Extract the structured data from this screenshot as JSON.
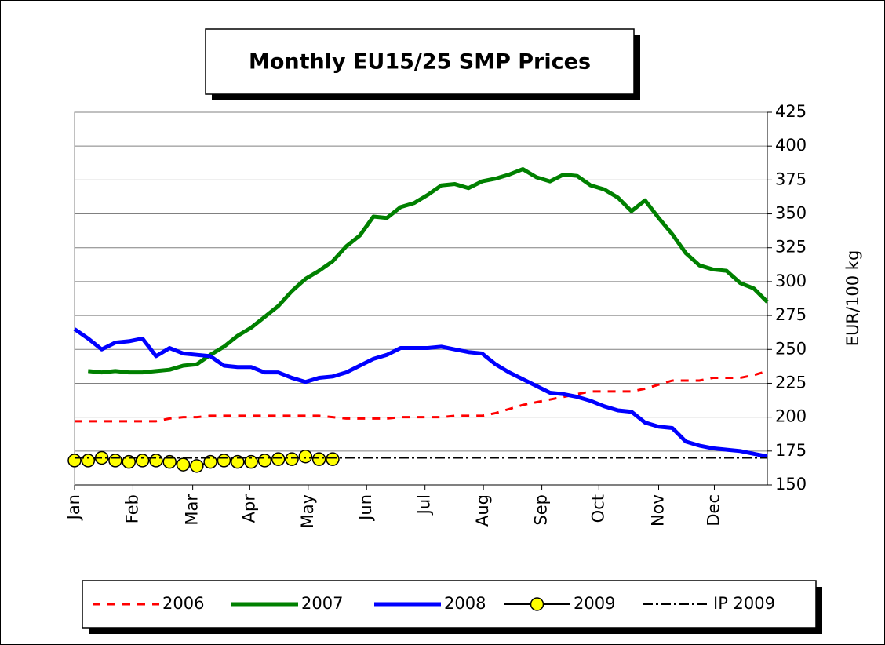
{
  "chart_data": {
    "type": "line",
    "title": "Monthly EU15/25 SMP Prices",
    "y_label": "EUR/100 kg",
    "x": [
      0,
      1,
      2,
      3,
      4,
      5,
      6,
      7,
      8,
      9,
      10,
      11,
      12,
      13,
      14,
      15,
      16,
      17,
      18,
      19,
      20,
      21,
      22,
      23,
      24,
      25,
      26,
      27,
      28,
      29,
      30,
      31,
      32,
      33,
      34,
      35,
      36,
      37,
      38,
      39,
      40,
      41,
      42,
      43,
      44,
      45,
      46,
      47,
      48,
      49,
      50,
      51
    ],
    "xlim": [
      0,
      51
    ],
    "xticks": [
      {
        "value": 0,
        "label": "Jan"
      },
      {
        "value": 4.3,
        "label": "Feb"
      },
      {
        "value": 8.7,
        "label": "Mar"
      },
      {
        "value": 12.9,
        "label": "Apr"
      },
      {
        "value": 17.2,
        "label": "May"
      },
      {
        "value": 21.5,
        "label": "Jun"
      },
      {
        "value": 25.8,
        "label": "Jul"
      },
      {
        "value": 30.1,
        "label": "Aug"
      },
      {
        "value": 34.4,
        "label": "Sep"
      },
      {
        "value": 38.6,
        "label": "Oct"
      },
      {
        "value": 43.0,
        "label": "Nov"
      },
      {
        "value": 47.1,
        "label": "Dec"
      }
    ],
    "ylim": [
      150,
      425
    ],
    "yticks": [
      150,
      175,
      200,
      225,
      250,
      275,
      300,
      325,
      350,
      375,
      400,
      425
    ],
    "grid": true,
    "y_axis_side": "right",
    "series": [
      {
        "name": "2006",
        "color": "#ff0000",
        "style": "dashed",
        "values": [
          197,
          197,
          197,
          197,
          197,
          197,
          197,
          199,
          200,
          200,
          201,
          201,
          201,
          201,
          201,
          201,
          201,
          201,
          201,
          200,
          199,
          199,
          199,
          199,
          200,
          200,
          200,
          200,
          201,
          201,
          201,
          203,
          206,
          209,
          211,
          213,
          215,
          217,
          219,
          219,
          219,
          219,
          221,
          224,
          227,
          227,
          227,
          229,
          229,
          229,
          231,
          234
        ]
      },
      {
        "name": "2007",
        "color": "#008000",
        "style": "solid",
        "values": [
          null,
          234,
          233,
          234,
          233,
          233,
          234,
          235,
          238,
          239,
          246,
          252,
          260,
          266,
          274,
          282,
          293,
          302,
          308,
          315,
          326,
          334,
          348,
          347,
          355,
          358,
          364,
          371,
          372,
          369,
          374,
          376,
          379,
          383,
          377,
          374,
          379,
          378,
          371,
          368,
          362,
          352,
          360,
          347,
          335,
          321,
          312,
          309,
          308,
          299,
          295,
          285
        ]
      },
      {
        "name": "2008",
        "color": "#0000ff",
        "style": "solid",
        "values": [
          265,
          258,
          250,
          255,
          256,
          258,
          245,
          251,
          247,
          246,
          245,
          238,
          237,
          237,
          233,
          233,
          229,
          226,
          229,
          230,
          233,
          238,
          243,
          246,
          251,
          251,
          251,
          252,
          250,
          248,
          247,
          239,
          233,
          228,
          223,
          218,
          217,
          215,
          212,
          208,
          205,
          204,
          196,
          193,
          192,
          182,
          179,
          177,
          176,
          175,
          173,
          171
        ]
      },
      {
        "name": "2009",
        "color": "#000000",
        "marker_color": "#ffff00",
        "style": "markers",
        "values": [
          168,
          168,
          170,
          168,
          167,
          168,
          168,
          167,
          165,
          164,
          167,
          168,
          167,
          167,
          168,
          169,
          169,
          171,
          169,
          169,
          null,
          null,
          null,
          null,
          null,
          null,
          null,
          null,
          null,
          null,
          null,
          null,
          null,
          null,
          null,
          null,
          null,
          null,
          null,
          null,
          null,
          null,
          null,
          null,
          null,
          null,
          null,
          null,
          null,
          null,
          null,
          null
        ]
      },
      {
        "name": "IP 2009",
        "color": "#000000",
        "style": "dashdot",
        "values": [
          170,
          170,
          170,
          170,
          170,
          170,
          170,
          170,
          170,
          170,
          170,
          170,
          170,
          170,
          170,
          170,
          170,
          170,
          170,
          170,
          170,
          170,
          170,
          170,
          170,
          170,
          170,
          170,
          170,
          170,
          170,
          170,
          170,
          170,
          170,
          170,
          170,
          170,
          170,
          170,
          170,
          170,
          170,
          170,
          170,
          170,
          170,
          170,
          170,
          170,
          170,
          170
        ]
      }
    ]
  }
}
